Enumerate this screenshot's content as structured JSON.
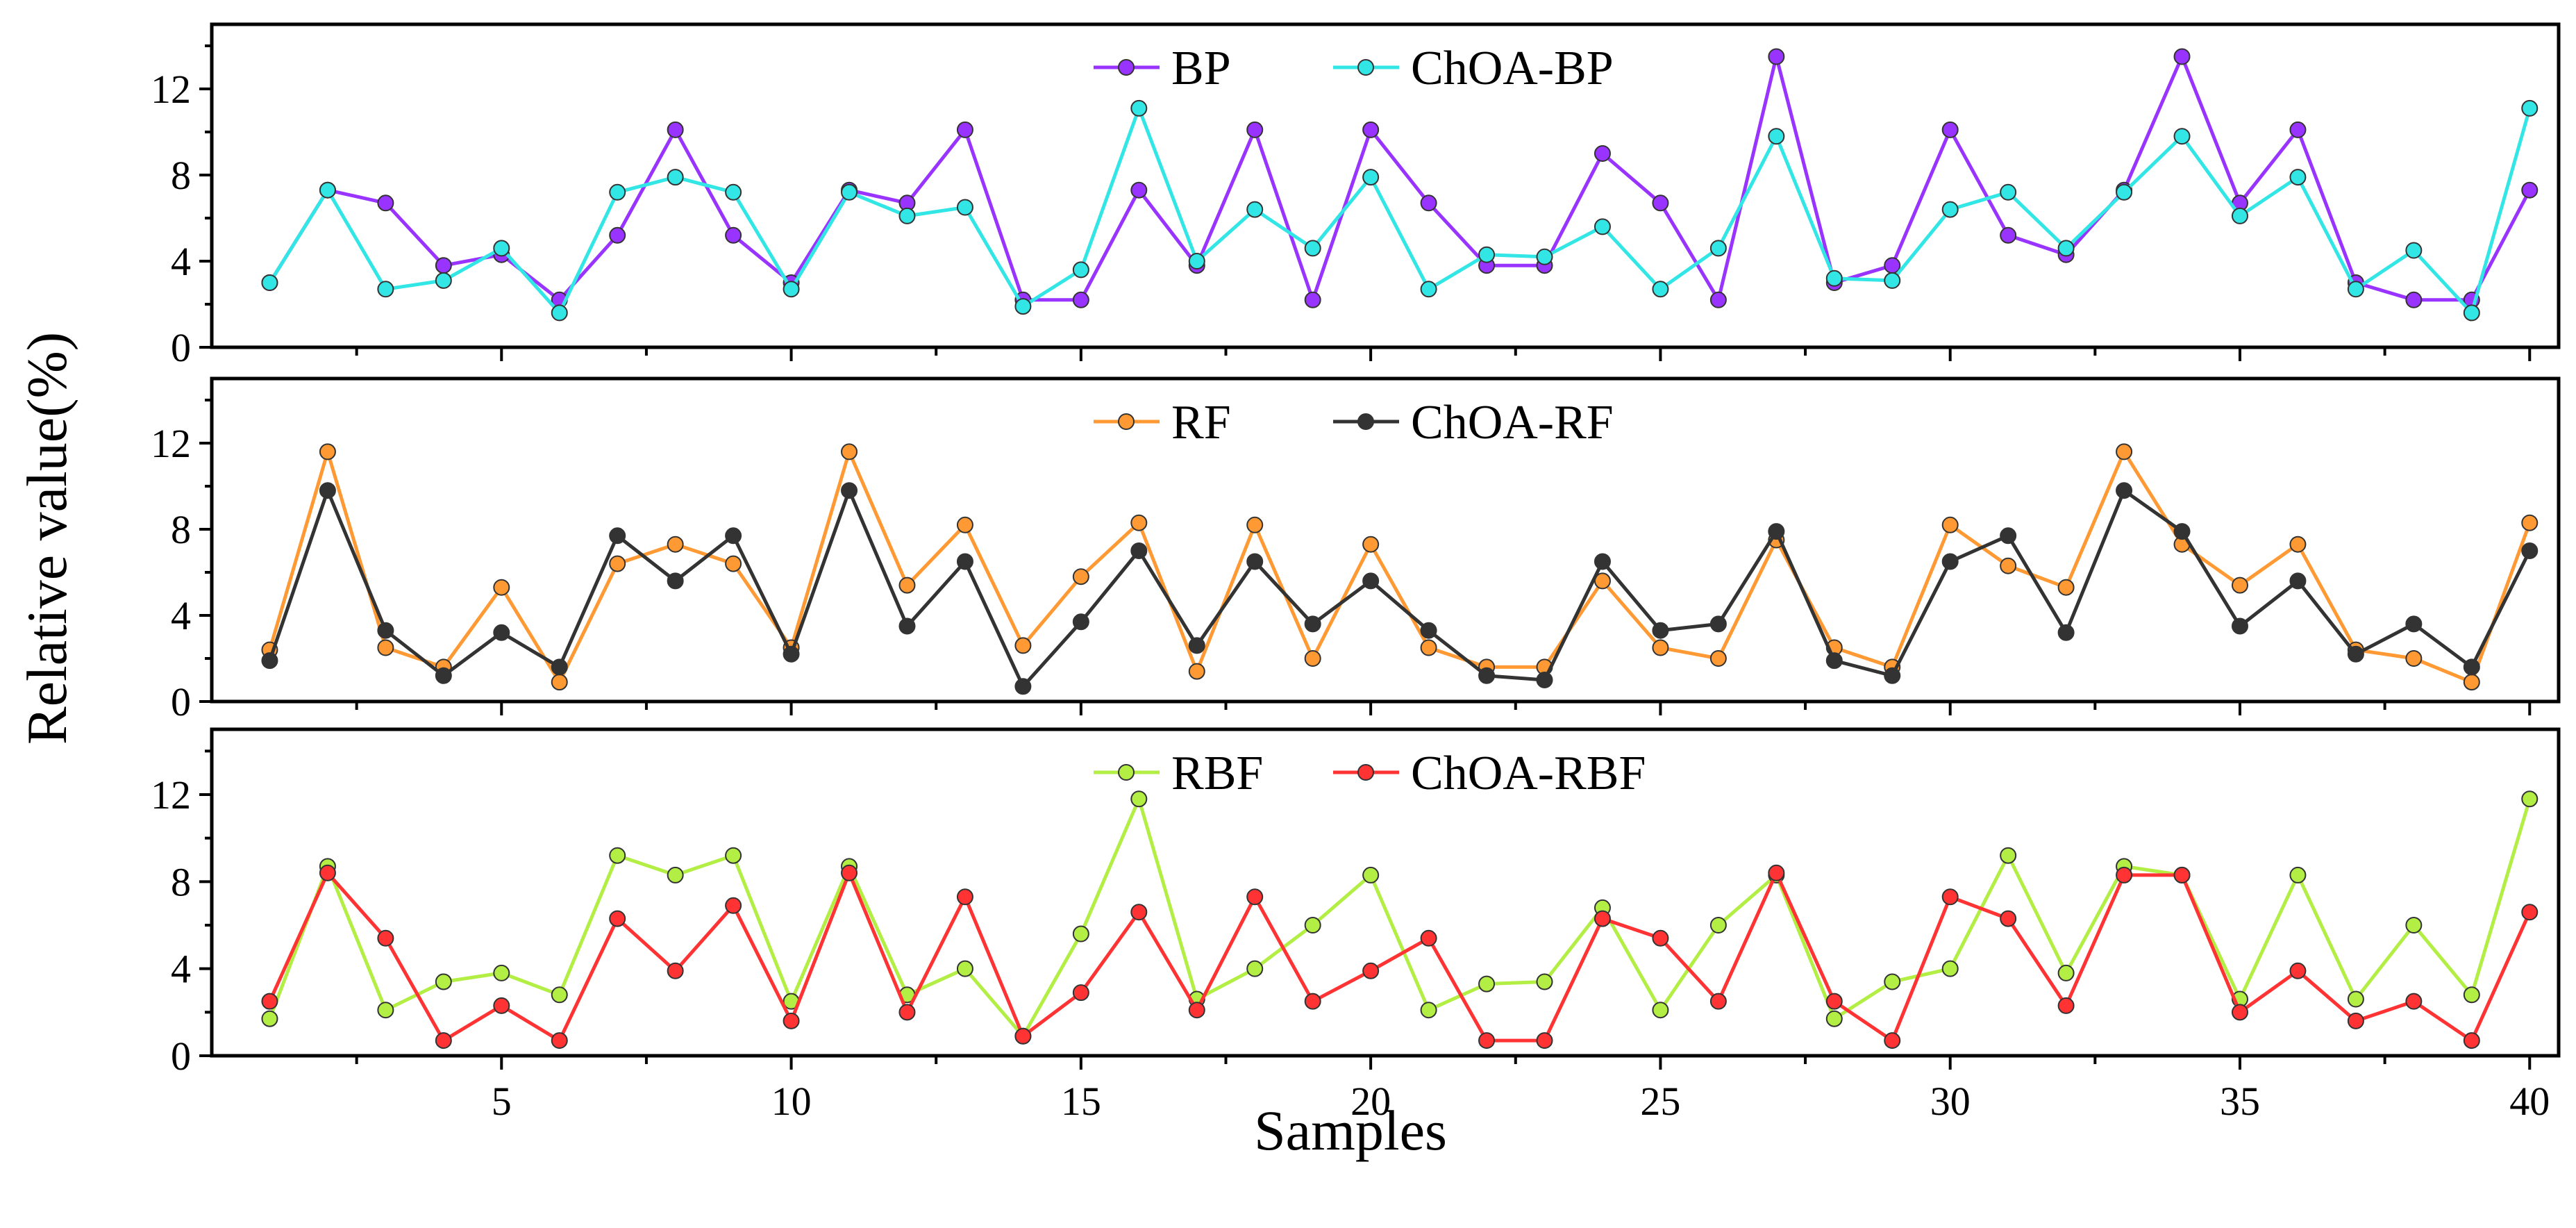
{
  "chart_data": {
    "type": "line",
    "xlabel": "Samples",
    "ylabel": "Relative value(%)",
    "x": [
      1,
      2,
      3,
      4,
      5,
      6,
      7,
      8,
      9,
      10,
      11,
      12,
      13,
      14,
      15,
      16,
      17,
      18,
      19,
      20,
      21,
      22,
      23,
      24,
      25,
      26,
      27,
      28,
      29,
      30,
      31,
      32,
      33,
      34,
      35,
      36,
      37,
      38,
      39,
      40
    ],
    "xlim": [
      0,
      40.5
    ],
    "xticks": [
      5,
      10,
      15,
      20,
      25,
      30,
      35,
      40
    ],
    "ylim": [
      0,
      15
    ],
    "yticks": [
      0,
      4,
      8,
      12
    ],
    "panels": [
      {
        "legend_position": "top-center",
        "series": [
          {
            "name": "BP",
            "color": "#9933ff",
            "values": [
              3.0,
              7.3,
              6.7,
              3.8,
              4.3,
              2.2,
              5.2,
              10.1,
              5.2,
              3.0,
              7.3,
              6.7,
              10.1,
              2.2,
              2.2,
              7.3,
              3.8,
              10.1,
              2.2,
              10.1,
              6.7,
              3.8,
              3.8,
              9.0,
              6.7,
              2.2,
              13.5,
              3.0,
              3.8,
              10.1,
              5.2,
              4.3,
              7.3,
              13.5,
              6.7,
              10.1,
              3.0,
              2.2,
              2.2,
              7.3
            ]
          },
          {
            "name": "ChOA-BP",
            "color": "#33e6e6",
            "values": [
              3.0,
              7.3,
              2.7,
              3.1,
              4.6,
              1.6,
              7.2,
              7.9,
              7.2,
              2.7,
              7.2,
              6.1,
              6.5,
              1.9,
              3.6,
              11.1,
              4.0,
              6.4,
              4.6,
              7.9,
              2.7,
              4.3,
              4.2,
              5.6,
              2.7,
              4.6,
              9.8,
              3.2,
              3.1,
              6.4,
              7.2,
              4.6,
              7.2,
              9.8,
              6.1,
              7.9,
              2.7,
              4.5,
              1.6,
              11.1
            ]
          }
        ]
      },
      {
        "legend_position": "top-center",
        "series": [
          {
            "name": "RF",
            "color": "#ff9933",
            "values": [
              2.4,
              11.6,
              2.5,
              1.6,
              5.3,
              0.9,
              6.4,
              7.3,
              6.4,
              2.5,
              11.6,
              5.4,
              8.2,
              2.6,
              5.8,
              8.3,
              1.4,
              8.2,
              2.0,
              7.3,
              2.5,
              1.6,
              1.6,
              5.6,
              2.5,
              2.0,
              7.5,
              2.5,
              1.6,
              8.2,
              6.3,
              5.3,
              11.6,
              7.3,
              5.4,
              7.3,
              2.4,
              2.0,
              0.9,
              8.3
            ]
          },
          {
            "name": "ChOA-RF",
            "color": "#333333",
            "values": [
              1.9,
              9.8,
              3.3,
              1.2,
              3.2,
              1.6,
              7.7,
              5.6,
              7.7,
              2.2,
              9.8,
              3.5,
              6.5,
              0.7,
              3.7,
              7.0,
              2.6,
              6.5,
              3.6,
              5.6,
              3.3,
              1.2,
              1.0,
              6.5,
              3.3,
              3.6,
              7.9,
              1.9,
              1.2,
              6.5,
              7.7,
              3.2,
              9.8,
              7.9,
              3.5,
              5.6,
              2.2,
              3.6,
              1.6,
              7.0
            ]
          }
        ]
      },
      {
        "legend_position": "top-center",
        "series": [
          {
            "name": "RBF",
            "color": "#b3ee44",
            "values": [
              1.7,
              8.7,
              2.1,
              3.4,
              3.8,
              2.8,
              9.2,
              8.3,
              9.2,
              2.5,
              8.7,
              2.8,
              4.0,
              0.9,
              5.6,
              11.8,
              2.6,
              4.0,
              6.0,
              8.3,
              2.1,
              3.3,
              3.4,
              6.8,
              2.1,
              6.0,
              8.3,
              1.7,
              3.4,
              4.0,
              9.2,
              3.8,
              8.7,
              8.3,
              2.6,
              8.3,
              2.6,
              6.0,
              2.8,
              11.8
            ]
          },
          {
            "name": "ChOA-RBF",
            "color": "#ff3333",
            "values": [
              2.5,
              8.4,
              5.4,
              0.7,
              2.3,
              0.7,
              6.3,
              3.9,
              6.9,
              1.6,
              8.4,
              2.0,
              7.3,
              0.9,
              2.9,
              6.6,
              2.1,
              7.3,
              2.5,
              3.9,
              5.4,
              0.7,
              0.7,
              6.3,
              5.4,
              2.5,
              8.4,
              2.5,
              0.7,
              7.3,
              6.3,
              2.3,
              8.3,
              8.3,
              2.0,
              3.9,
              1.6,
              2.5,
              0.7,
              6.6
            ]
          }
        ]
      }
    ]
  }
}
